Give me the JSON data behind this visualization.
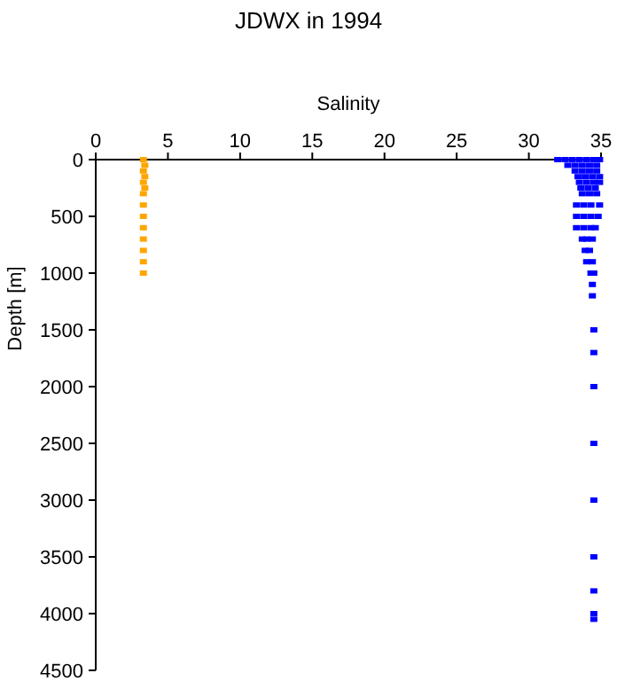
{
  "chart_data": {
    "type": "scatter",
    "title": "JDWX in 1994",
    "xlabel": "Salinity",
    "ylabel": "Depth [m]",
    "xlim": [
      0,
      35
    ],
    "xticks": [
      0,
      5,
      10,
      15,
      20,
      25,
      30,
      35
    ],
    "ylim": [
      4500,
      0
    ],
    "yticks": [
      0,
      500,
      1000,
      1500,
      2000,
      2500,
      3000,
      3500,
      4000,
      4500
    ],
    "marker": "square",
    "grid": false,
    "series": [
      {
        "color": "#ffa500",
        "x": [
          3.3,
          3.4,
          3.3,
          3.4,
          3.3,
          3.4,
          3.3,
          3.3,
          3.3,
          3.3,
          3.3,
          3.3,
          3.3,
          3.3
        ],
        "values": [
          0,
          50,
          100,
          150,
          200,
          250,
          300,
          400,
          500,
          600,
          700,
          800,
          900,
          1000
        ]
      },
      {
        "color": "#0000ff",
        "x": [
          32.0,
          32.5,
          33.0,
          33.5,
          34.0,
          34.5,
          34.9,
          32.7,
          33.2,
          33.7,
          34.2,
          34.7,
          33.2,
          33.7,
          34.2,
          34.7,
          33.4,
          33.9,
          34.4,
          34.9,
          33.5,
          34.0,
          34.5,
          34.9,
          33.6,
          34.1,
          34.6,
          33.7,
          34.2,
          34.7,
          33.3,
          33.8,
          34.3,
          34.9,
          33.3,
          33.8,
          34.3,
          34.8,
          33.3,
          33.8,
          34.3,
          34.6,
          33.7,
          34.0,
          34.4,
          33.9,
          34.2,
          34.0,
          34.4,
          34.3,
          34.5,
          34.4,
          34.4,
          34.5,
          34.5,
          34.5,
          34.5,
          34.5,
          34.5,
          34.5,
          34.5,
          34.5
        ],
        "values": [
          0,
          0,
          0,
          0,
          0,
          0,
          0,
          50,
          50,
          50,
          50,
          50,
          100,
          100,
          100,
          100,
          150,
          150,
          150,
          150,
          200,
          200,
          200,
          200,
          250,
          250,
          250,
          300,
          300,
          300,
          400,
          400,
          400,
          400,
          500,
          500,
          500,
          500,
          600,
          600,
          600,
          600,
          700,
          700,
          700,
          800,
          800,
          900,
          900,
          1000,
          1000,
          1100,
          1200,
          1500,
          1700,
          2000,
          2500,
          3000,
          3500,
          3800,
          4000,
          4050
        ]
      }
    ]
  }
}
